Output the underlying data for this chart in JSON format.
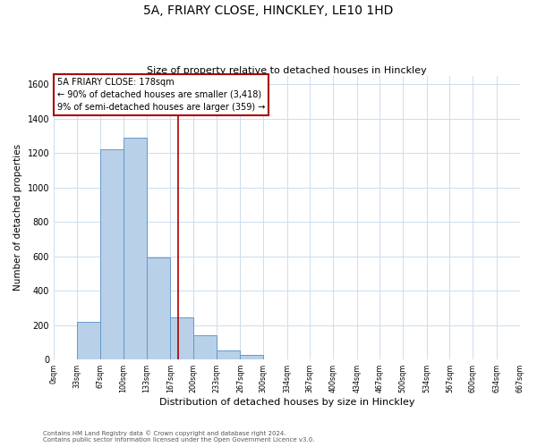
{
  "title": "5A, FRIARY CLOSE, HINCKLEY, LE10 1HD",
  "subtitle": "Size of property relative to detached houses in Hinckley",
  "xlabel": "Distribution of detached houses by size in Hinckley",
  "ylabel": "Number of detached properties",
  "bar_edges": [
    0,
    33,
    67,
    100,
    133,
    167,
    200,
    233,
    267,
    300,
    334,
    367,
    400,
    434,
    467,
    500,
    534,
    567,
    600,
    634,
    667
  ],
  "bar_heights": [
    0,
    220,
    1225,
    1290,
    595,
    245,
    140,
    55,
    25,
    0,
    0,
    0,
    0,
    0,
    0,
    0,
    0,
    0,
    0,
    0
  ],
  "bar_color": "#b8d0e8",
  "bar_edge_color": "#6699cc",
  "property_line_x": 178,
  "property_line_color": "#aa0000",
  "annotation_line1": "5A FRIARY CLOSE: 178sqm",
  "annotation_line2": "← 90% of detached houses are smaller (3,418)",
  "annotation_line3": "9% of semi-detached houses are larger (359) →",
  "annotation_box_color": "#ffffff",
  "annotation_box_edge_color": "#aa0000",
  "ylim": [
    0,
    1650
  ],
  "yticks": [
    0,
    200,
    400,
    600,
    800,
    1000,
    1200,
    1400,
    1600
  ],
  "tick_labels": [
    "0sqm",
    "33sqm",
    "67sqm",
    "100sqm",
    "133sqm",
    "167sqm",
    "200sqm",
    "233sqm",
    "267sqm",
    "300sqm",
    "334sqm",
    "367sqm",
    "400sqm",
    "434sqm",
    "467sqm",
    "500sqm",
    "534sqm",
    "567sqm",
    "600sqm",
    "634sqm",
    "667sqm"
  ],
  "footer_line1": "Contains HM Land Registry data © Crown copyright and database right 2024.",
  "footer_line2": "Contains public sector information licensed under the Open Government Licence v3.0.",
  "background_color": "#ffffff",
  "grid_color": "#ccddee"
}
